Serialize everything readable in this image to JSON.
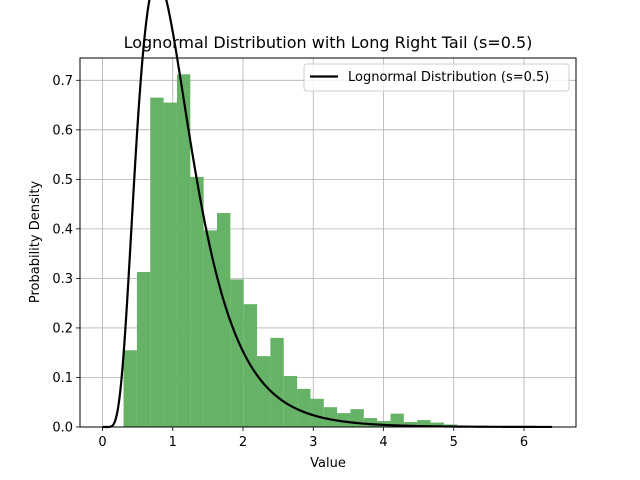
{
  "chart_data": {
    "type": "bar",
    "title": "Lognormal Distribution with Long Right Tail (s=0.5)",
    "xlabel": "Value",
    "ylabel": "Probability Density",
    "xlim": [
      -0.32,
      6.74
    ],
    "ylim": [
      0,
      0.745
    ],
    "xticks": [
      0,
      1,
      2,
      3,
      4,
      5,
      6
    ],
    "yticks": [
      0.0,
      0.1,
      0.2,
      0.3,
      0.4,
      0.5,
      0.6,
      0.7
    ],
    "grid": true,
    "legend": {
      "placement": "top-right",
      "entries": [
        "Lognormal Distribution (s=0.5)"
      ]
    },
    "histogram": {
      "color": "#66b266",
      "bin_width": 0.19,
      "bins": [
        {
          "x0": 0.3,
          "value": 0.155
        },
        {
          "x0": 0.49,
          "value": 0.313
        },
        {
          "x0": 0.68,
          "value": 0.665
        },
        {
          "x0": 0.87,
          "value": 0.655
        },
        {
          "x0": 1.06,
          "value": 0.712
        },
        {
          "x0": 1.25,
          "value": 0.505
        },
        {
          "x0": 1.44,
          "value": 0.397
        },
        {
          "x0": 1.63,
          "value": 0.432
        },
        {
          "x0": 1.82,
          "value": 0.298
        },
        {
          "x0": 2.01,
          "value": 0.248
        },
        {
          "x0": 2.2,
          "value": 0.143
        },
        {
          "x0": 2.39,
          "value": 0.18
        },
        {
          "x0": 2.58,
          "value": 0.103
        },
        {
          "x0": 2.77,
          "value": 0.077
        },
        {
          "x0": 2.96,
          "value": 0.057
        },
        {
          "x0": 3.15,
          "value": 0.04
        },
        {
          "x0": 3.34,
          "value": 0.028
        },
        {
          "x0": 3.53,
          "value": 0.036
        },
        {
          "x0": 3.72,
          "value": 0.018
        },
        {
          "x0": 3.91,
          "value": 0.012
        },
        {
          "x0": 4.1,
          "value": 0.027
        },
        {
          "x0": 4.29,
          "value": 0.01
        },
        {
          "x0": 4.48,
          "value": 0.014
        },
        {
          "x0": 4.67,
          "value": 0.009
        },
        {
          "x0": 4.86,
          "value": 0.005
        },
        {
          "x0": 5.05,
          "value": 0.003
        },
        {
          "x0": 5.24,
          "value": 0.002
        }
      ]
    },
    "series": [
      {
        "name": "Lognormal Distribution (s=0.5)",
        "color": "#000000",
        "shape": 0.5,
        "x_range": [
          0.0,
          6.4
        ]
      }
    ]
  }
}
